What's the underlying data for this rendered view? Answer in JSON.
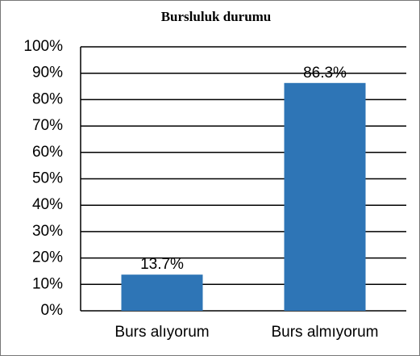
{
  "chart_data": {
    "type": "bar",
    "title": "Bursluluk durumu",
    "categories": [
      "Burs alıyorum",
      "Burs almıyorum"
    ],
    "values": [
      13.7,
      86.3
    ],
    "value_labels": [
      "13.7%",
      "86.3%"
    ],
    "color": "#2e75b6",
    "ylim": [
      0,
      100
    ],
    "yticks": [
      {
        "value": 0,
        "label": "0%"
      },
      {
        "value": 10,
        "label": "10%"
      },
      {
        "value": 20,
        "label": "20%"
      },
      {
        "value": 30,
        "label": "30%"
      },
      {
        "value": 40,
        "label": "40%"
      },
      {
        "value": 50,
        "label": "50%"
      },
      {
        "value": 60,
        "label": "60%"
      },
      {
        "value": 70,
        "label": "70%"
      },
      {
        "value": 80,
        "label": "80%"
      },
      {
        "value": 90,
        "label": "90%"
      },
      {
        "value": 100,
        "label": "100%"
      }
    ],
    "grid": true
  }
}
